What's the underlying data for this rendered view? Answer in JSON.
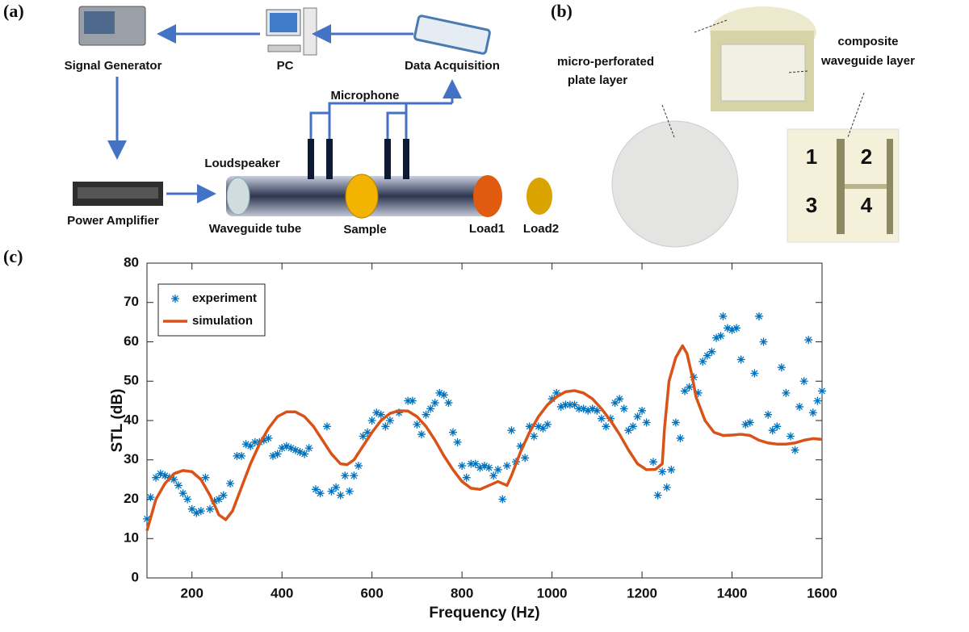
{
  "panel_labels": [
    "(a)",
    "(b)",
    "(c)"
  ],
  "setup": {
    "signal_generator": "Signal Generator",
    "pc": "PC",
    "data_acquisition": "Data Acquisition",
    "microphone": "Microphone",
    "loudspeaker": "Loudspeaker",
    "power_amplifier": "Power Amplifier",
    "waveguide_tube": "Waveguide tube",
    "sample": "Sample",
    "load1": "Load1",
    "load2": "Load2"
  },
  "sample_photo": {
    "plate_label": [
      "micro-perforated",
      "plate layer"
    ],
    "waveguide_label": [
      "composite",
      "waveguide layer"
    ],
    "cells": [
      "1",
      "2",
      "3",
      "4"
    ]
  },
  "chart_data": {
    "type": "line",
    "xlabel": "Frequency (Hz)",
    "ylabel": "STL (dB)",
    "xlim": [
      100,
      1600
    ],
    "xticks": [
      200,
      400,
      600,
      800,
      1000,
      1200,
      1400,
      1600
    ],
    "ylim": [
      0,
      80
    ],
    "yticks": [
      0,
      10,
      20,
      30,
      40,
      50,
      60,
      70,
      80
    ],
    "legend": "upper left",
    "grid": false,
    "series": [
      {
        "name": "experiment",
        "color": "#0072bd",
        "marker": "asterisk",
        "x": [
          100,
          108,
          120,
          130,
          140,
          150,
          160,
          170,
          180,
          190,
          200,
          210,
          220,
          230,
          240,
          250,
          260,
          270,
          285,
          300,
          310,
          320,
          330,
          340,
          350,
          360,
          370,
          380,
          390,
          400,
          410,
          420,
          430,
          440,
          450,
          460,
          475,
          485,
          500,
          510,
          520,
          530,
          540,
          550,
          560,
          570,
          580,
          590,
          600,
          610,
          620,
          630,
          640,
          660,
          680,
          690,
          700,
          710,
          720,
          730,
          740,
          750,
          760,
          770,
          780,
          790,
          800,
          810,
          820,
          830,
          840,
          850,
          860,
          870,
          880,
          890,
          900,
          910,
          920,
          930,
          940,
          950,
          960,
          970,
          980,
          990,
          1000,
          1010,
          1020,
          1030,
          1040,
          1050,
          1060,
          1070,
          1080,
          1090,
          1100,
          1110,
          1120,
          1130,
          1140,
          1150,
          1160,
          1170,
          1180,
          1190,
          1200,
          1210,
          1225,
          1235,
          1245,
          1255,
          1265,
          1275,
          1285,
          1295,
          1305,
          1315,
          1325,
          1335,
          1345,
          1355,
          1365,
          1375,
          1380,
          1390,
          1400,
          1410,
          1420,
          1430,
          1440,
          1450,
          1460,
          1470,
          1480,
          1490,
          1500,
          1510,
          1520,
          1530,
          1540,
          1550,
          1560,
          1570,
          1580,
          1590,
          1600
        ],
        "values": [
          15,
          20.5,
          25.5,
          26.5,
          26,
          25.5,
          25,
          23.5,
          21.5,
          20,
          17.5,
          16.5,
          17,
          25.5,
          17.5,
          19.5,
          20,
          21,
          24,
          31,
          31,
          34,
          33.5,
          34.5,
          34.5,
          35,
          35.5,
          31,
          31.5,
          33,
          33.5,
          33,
          32.5,
          32,
          31.5,
          33,
          22.5,
          21.5,
          38.5,
          22,
          23,
          21,
          26,
          22,
          26,
          28.5,
          36,
          37,
          40,
          42,
          41.5,
          38.5,
          40,
          42,
          45,
          45,
          39,
          36.5,
          41.5,
          43,
          44.5,
          47,
          46.5,
          44.5,
          37,
          34.5,
          28.5,
          25.5,
          29,
          29,
          28,
          28.5,
          28,
          26,
          27.5,
          20,
          28.5,
          37.5,
          29.5,
          33.5,
          30.5,
          38.5,
          36,
          38.5,
          38,
          39,
          45.5,
          47,
          43.5,
          44,
          44,
          44,
          43,
          43,
          42.5,
          43,
          42.5,
          40.5,
          38.5,
          40.5,
          44.5,
          45.5,
          43,
          37.5,
          38.5,
          41,
          42.5,
          39.5,
          29.5,
          21,
          27,
          23,
          27.5,
          39.5,
          35.5,
          47.5,
          48.5,
          51,
          47,
          55,
          56.5,
          57.5,
          61,
          61.5,
          66.5,
          63.5,
          63,
          63.5,
          55.5,
          39,
          39.5,
          52,
          66.5,
          60,
          41.5,
          37.5,
          38.5,
          53.5,
          47,
          36,
          32.5,
          43.5,
          50,
          60.5,
          42,
          45,
          47.5
        ]
      },
      {
        "name": "simulation",
        "color": "#d95319",
        "x": [
          100,
          120,
          140,
          160,
          180,
          200,
          220,
          240,
          260,
          275,
          290,
          310,
          330,
          350,
          370,
          390,
          410,
          430,
          450,
          470,
          490,
          510,
          530,
          545,
          560,
          580,
          600,
          620,
          640,
          660,
          680,
          700,
          720,
          740,
          760,
          780,
          800,
          820,
          840,
          860,
          880,
          900,
          910,
          930,
          950,
          970,
          990,
          1010,
          1030,
          1050,
          1070,
          1090,
          1110,
          1130,
          1150,
          1170,
          1190,
          1210,
          1230,
          1245,
          1250,
          1260,
          1275,
          1290,
          1300,
          1310,
          1320,
          1340,
          1360,
          1380,
          1400,
          1420,
          1440,
          1460,
          1480,
          1500,
          1520,
          1540,
          1560,
          1580,
          1600
        ],
        "values": [
          12,
          20,
          24,
          26.5,
          27.3,
          27,
          25,
          21,
          16,
          14.8,
          17,
          23,
          29,
          34,
          38,
          41,
          42.2,
          42.2,
          41,
          38.5,
          35,
          31.5,
          29,
          28.8,
          30,
          33.5,
          37,
          40,
          41.8,
          42.5,
          42.4,
          41,
          38.5,
          35,
          31,
          27.5,
          24.5,
          22.8,
          22.5,
          23.5,
          24.5,
          23.5,
          26,
          32,
          37,
          41,
          44,
          46,
          47.3,
          47.6,
          47,
          45.5,
          43,
          40,
          36.5,
          32.5,
          29,
          27.5,
          27.6,
          29,
          38,
          50,
          56,
          59,
          57,
          52,
          46,
          40,
          37,
          36.2,
          36.3,
          36.5,
          36.2,
          35,
          34.3,
          34,
          34,
          34.3,
          35,
          35.4,
          35.2
        ]
      }
    ]
  }
}
